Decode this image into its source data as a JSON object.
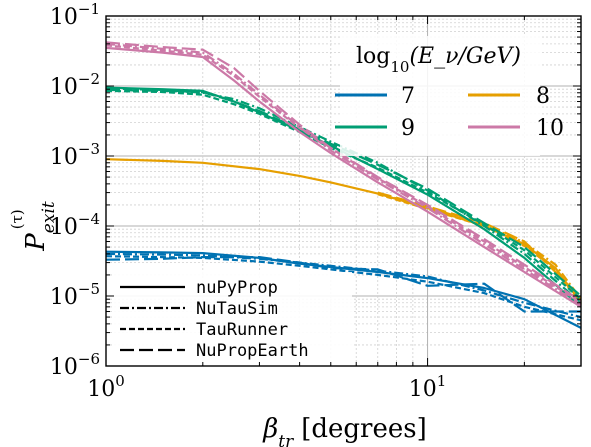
{
  "chart_data": {
    "type": "line",
    "xlabel": "β_tr [degrees]",
    "xlabel_main": "β",
    "xlabel_sub": "tr",
    "xlabel_unit": "[degrees]",
    "ylabel": "P_exit^(τ)",
    "ylabel_main": "P",
    "ylabel_sub": "exit",
    "ylabel_sup": "(τ)",
    "xscale": "log",
    "yscale": "log",
    "xlim": [
      1,
      30
    ],
    "ylim": [
      1e-06,
      0.1
    ],
    "grid": true,
    "x_tick_labels": [
      {
        "value": 1,
        "base": "10",
        "exp": "0"
      },
      {
        "value": 10,
        "base": "10",
        "exp": "1"
      }
    ],
    "y_tick_labels": [
      {
        "value": 1e-06,
        "base": "10",
        "exp": "−6"
      },
      {
        "value": 1e-05,
        "base": "10",
        "exp": "−5"
      },
      {
        "value": 0.0001,
        "base": "10",
        "exp": "−4"
      },
      {
        "value": 0.001,
        "base": "10",
        "exp": "−3"
      },
      {
        "value": 0.01,
        "base": "10",
        "exp": "−2"
      },
      {
        "value": 0.1,
        "base": "10",
        "exp": "−1"
      }
    ],
    "energy_legend": {
      "title_prefix": "log",
      "title_sub": "10",
      "title_rest": "(E_ν/GeV)",
      "placement": "top-right",
      "entries": [
        {
          "label": "7",
          "color": "#0072b2"
        },
        {
          "label": "8",
          "color": "#e69f00"
        },
        {
          "label": "9",
          "color": "#009e73"
        },
        {
          "label": "10",
          "color": "#cc79a7"
        }
      ]
    },
    "code_legend": {
      "placement": "bottom-left",
      "entries": [
        {
          "label": "nuPyProp",
          "style": "solid"
        },
        {
          "label": "NuTauSim",
          "style": "dashdot"
        },
        {
          "label": "TauRunner",
          "style": "dashed"
        },
        {
          "label": "NuPropEarth",
          "style": "longdash"
        }
      ]
    },
    "series": [
      {
        "energy": "7",
        "code": "nuPyProp",
        "color": "#0072b2",
        "x": [
          1,
          1.5,
          2,
          3,
          4,
          5,
          7,
          10,
          15,
          20,
          30
        ],
        "y": [
          4.3e-05,
          4.2e-05,
          4.1e-05,
          3.5e-05,
          2.9e-05,
          2.6e-05,
          2.2e-05,
          1.8e-05,
          1.3e-05,
          9e-06,
          3.5e-06
        ]
      },
      {
        "energy": "7",
        "code": "NuTauSim",
        "color": "#0072b2",
        "x": [
          1,
          1.5,
          2,
          3,
          4,
          5,
          7,
          10,
          15,
          20,
          30
        ],
        "y": [
          4e-05,
          3.9e-05,
          3.8e-05,
          3.4e-05,
          3e-05,
          2.7e-05,
          2.3e-05,
          1.9e-05,
          1.2e-05,
          8e-06,
          5e-06
        ]
      },
      {
        "energy": "7",
        "code": "TauRunner",
        "color": "#0072b2",
        "x": [
          1,
          1.5,
          2,
          3,
          4,
          5,
          7,
          10,
          15,
          20,
          30
        ],
        "y": [
          3.7e-05,
          3.6e-05,
          3.5e-05,
          3.1e-05,
          2.7e-05,
          2.4e-05,
          2e-05,
          1.6e-05,
          1.1e-05,
          7e-06,
          4.5e-06
        ]
      },
      {
        "energy": "7",
        "code": "NuPropEarth",
        "color": "#0072b2",
        "x": [
          1,
          1.5,
          2,
          3,
          4,
          5,
          7,
          10,
          15,
          20,
          30
        ],
        "y": [
          3.3e-05,
          3.4e-05,
          3.6e-05,
          3.6e-05,
          3e-05,
          2.5e-05,
          2.4e-05,
          1.4e-05,
          1.5e-05,
          6e-06,
          6e-06
        ]
      },
      {
        "energy": "8",
        "code": "nuPyProp",
        "color": "#e69f00",
        "x": [
          1,
          1.5,
          2,
          3,
          4,
          5,
          7,
          10,
          15,
          20,
          25,
          30
        ],
        "y": [
          0.0009,
          0.00085,
          0.0008,
          0.00065,
          0.00052,
          0.00042,
          0.00029,
          0.00018,
          0.0001,
          5.5e-05,
          2.5e-05,
          8e-06
        ]
      },
      {
        "energy": "8",
        "code": "NuTauSim",
        "color": "#e69f00",
        "x": [
          7,
          10,
          15,
          20,
          25,
          30
        ],
        "y": [
          0.000295,
          0.000185,
          0.000105,
          5.8e-05,
          2.8e-05,
          9e-06
        ]
      },
      {
        "energy": "8",
        "code": "TauRunner",
        "color": "#e69f00",
        "x": [
          7,
          10,
          15,
          20,
          25,
          30
        ],
        "y": [
          0.000285,
          0.000175,
          0.0001,
          5.2e-05,
          2.4e-05,
          7.5e-06
        ]
      },
      {
        "energy": "8",
        "code": "NuPropEarth",
        "color": "#e69f00",
        "x": [
          7,
          10,
          15,
          20,
          25,
          30
        ],
        "y": [
          0.0003,
          0.00019,
          0.00011,
          6e-05,
          2.2e-05,
          8.5e-06
        ]
      },
      {
        "energy": "9",
        "code": "nuPyProp",
        "color": "#009e73",
        "x": [
          1,
          1.5,
          2,
          2.5,
          3,
          4,
          5,
          7,
          10,
          15,
          20,
          30
        ],
        "y": [
          0.0095,
          0.009,
          0.0085,
          0.006,
          0.0042,
          0.0023,
          0.0014,
          0.00065,
          0.00028,
          9e-05,
          3.5e-05,
          7e-06
        ]
      },
      {
        "energy": "9",
        "code": "NuTauSim",
        "color": "#009e73",
        "x": [
          1,
          1.5,
          2,
          2.5,
          3,
          4,
          5,
          7,
          10,
          15,
          20,
          30
        ],
        "y": [
          0.0092,
          0.0088,
          0.008,
          0.0065,
          0.0048,
          0.0026,
          0.0016,
          0.0008,
          0.00032,
          0.0001,
          4e-05,
          8e-06
        ]
      },
      {
        "energy": "9",
        "code": "TauRunner",
        "color": "#009e73",
        "x": [
          1,
          1.5,
          2,
          2.5,
          3,
          4,
          5,
          7,
          10,
          15,
          20,
          30
        ],
        "y": [
          0.0085,
          0.0082,
          0.0075,
          0.0055,
          0.004,
          0.0022,
          0.0013,
          0.00068,
          0.0003,
          0.000105,
          4.5e-05,
          9e-06
        ]
      },
      {
        "energy": "9",
        "code": "NuPropEarth",
        "color": "#009e73",
        "x": [
          1,
          1.5,
          2,
          2.5,
          3,
          4,
          5,
          7,
          10,
          15,
          20,
          30
        ],
        "y": [
          0.0088,
          0.0085,
          0.0082,
          0.006,
          0.0044,
          0.0024,
          0.0015,
          0.00075,
          0.00034,
          0.00011,
          5e-05,
          1e-05
        ]
      },
      {
        "energy": "10",
        "code": "nuPyProp",
        "color": "#cc79a7",
        "x": [
          1,
          1.5,
          2,
          2.5,
          3,
          4,
          5,
          7,
          10,
          15,
          20,
          30
        ],
        "y": [
          0.035,
          0.03,
          0.026,
          0.012,
          0.006,
          0.0022,
          0.0011,
          0.00042,
          0.00016,
          5e-05,
          2.2e-05,
          7e-06
        ]
      },
      {
        "energy": "10",
        "code": "NuTauSim",
        "color": "#cc79a7",
        "x": [
          1,
          1.5,
          2,
          2.5,
          3,
          4,
          5,
          7,
          10,
          15,
          20,
          30
        ],
        "y": [
          0.04,
          0.034,
          0.03,
          0.015,
          0.0075,
          0.0026,
          0.0012,
          0.00046,
          0.00018,
          5.5e-05,
          2.4e-05,
          7.5e-06
        ]
      },
      {
        "energy": "10",
        "code": "TauRunner",
        "color": "#cc79a7",
        "x": [
          1,
          1.5,
          2,
          2.5,
          3,
          4,
          5,
          7,
          10,
          15,
          20,
          30
        ],
        "y": [
          0.038,
          0.032,
          0.028,
          0.014,
          0.007,
          0.0025,
          0.0013,
          0.00048,
          0.00019,
          6e-05,
          2.6e-05,
          8e-06
        ]
      },
      {
        "energy": "10",
        "code": "NuPropEarth",
        "color": "#cc79a7",
        "x": [
          1,
          1.5,
          2,
          2.5,
          3,
          4,
          5,
          7,
          10,
          15,
          20,
          30
        ],
        "y": [
          0.042,
          0.036,
          0.033,
          0.018,
          0.0085,
          0.0028,
          0.0013,
          0.0005,
          0.0002,
          6.5e-05,
          2.8e-05,
          8.5e-06
        ]
      }
    ]
  }
}
